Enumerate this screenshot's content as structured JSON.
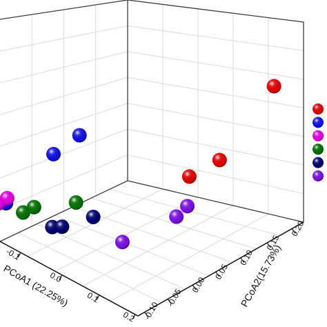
{
  "chart_data": {
    "type": "scatter",
    "dimensions": 3,
    "title": "",
    "xlabel": "PCoA1 (22.25%)",
    "ylabel": "PCoA2(15.73%)",
    "zlabel": "",
    "grid": true,
    "legend_position": "right",
    "x_ticks": [
      "-0.1",
      "0.0",
      "0.1",
      "0.2"
    ],
    "y_ticks": [
      "-0.10",
      "-0.05",
      "0.00",
      "0.05",
      "0.10",
      "0.15",
      "0.20"
    ],
    "series": [
      {
        "color": "#e00000",
        "points": [
          [
            0.15,
            0.18,
            0.1
          ],
          [
            0.15,
            0.08,
            0.01
          ],
          [
            0.13,
            0.04,
            -0.01
          ]
        ]
      },
      {
        "color": "#1010e0",
        "points": [
          [
            -0.05,
            -0.02,
            0.02
          ],
          [
            -0.06,
            -0.06,
            0.0
          ],
          [
            -0.12,
            -0.1,
            -0.1
          ]
        ]
      },
      {
        "color": "#e000e0",
        "points": [
          [
            -0.13,
            -0.09,
            -0.1
          ],
          [
            -0.14,
            -0.1,
            -0.11
          ],
          [
            -0.14,
            -0.11,
            -0.11
          ]
        ]
      },
      {
        "color": "#007000",
        "points": [
          [
            -0.02,
            -0.05,
            -0.08
          ],
          [
            -0.08,
            -0.08,
            -0.1
          ],
          [
            -0.08,
            -0.1,
            -0.1
          ]
        ]
      },
      {
        "color": "#000070",
        "points": [
          [
            0.02,
            -0.05,
            -0.09
          ],
          [
            -0.05,
            -0.07,
            -0.13
          ],
          [
            -0.04,
            -0.06,
            -0.13
          ]
        ]
      },
      {
        "color": "#7a10e0",
        "points": [
          [
            0.1,
            0.06,
            -0.09
          ],
          [
            0.1,
            0.04,
            -0.1
          ],
          [
            0.05,
            -0.02,
            -0.14
          ]
        ]
      }
    ]
  }
}
